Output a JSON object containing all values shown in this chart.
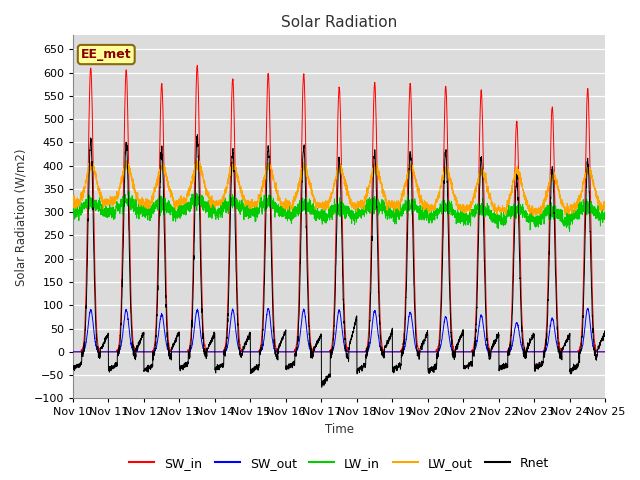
{
  "title": "Solar Radiation",
  "ylabel": "Solar Radiation (W/m2)",
  "xlabel": "Time",
  "ylim": [
    -100,
    680
  ],
  "yticks": [
    -100,
    -50,
    0,
    50,
    100,
    150,
    200,
    250,
    300,
    350,
    400,
    450,
    500,
    550,
    600,
    650
  ],
  "num_days": 15,
  "hours_per_day": 24,
  "dt_hours": 0.1,
  "sw_in_peaks": [
    610,
    605,
    575,
    615,
    585,
    597,
    597,
    568,
    578,
    576,
    570,
    560,
    495,
    527,
    563
  ],
  "sw_out_peaks": [
    90,
    90,
    80,
    90,
    90,
    93,
    90,
    88,
    88,
    85,
    75,
    78,
    63,
    72,
    93
  ],
  "lw_in_base": [
    300,
    302,
    298,
    305,
    300,
    300,
    295,
    292,
    300,
    295,
    290,
    288,
    285,
    282,
    290
  ],
  "lw_out_base": [
    320,
    322,
    318,
    325,
    320,
    318,
    315,
    315,
    318,
    315,
    310,
    308,
    305,
    302,
    312
  ],
  "rnet_night_vals": [
    -35,
    -38,
    -40,
    -36,
    -38,
    -42,
    -35,
    -70,
    -40,
    -38,
    -42,
    -36,
    -38,
    -35,
    -40
  ],
  "colors": {
    "SW_in": "#FF0000",
    "SW_out": "#0000FF",
    "LW_in": "#00CC00",
    "LW_out": "#FFA500",
    "Rnet": "#000000",
    "background": "#DCDCDC",
    "grid": "#FFFFFF"
  },
  "legend_label": "EE_met",
  "legend_box_color": "#FFFF99",
  "legend_box_edge": "#8B6914",
  "figsize": [
    6.4,
    4.8
  ],
  "dpi": 100
}
